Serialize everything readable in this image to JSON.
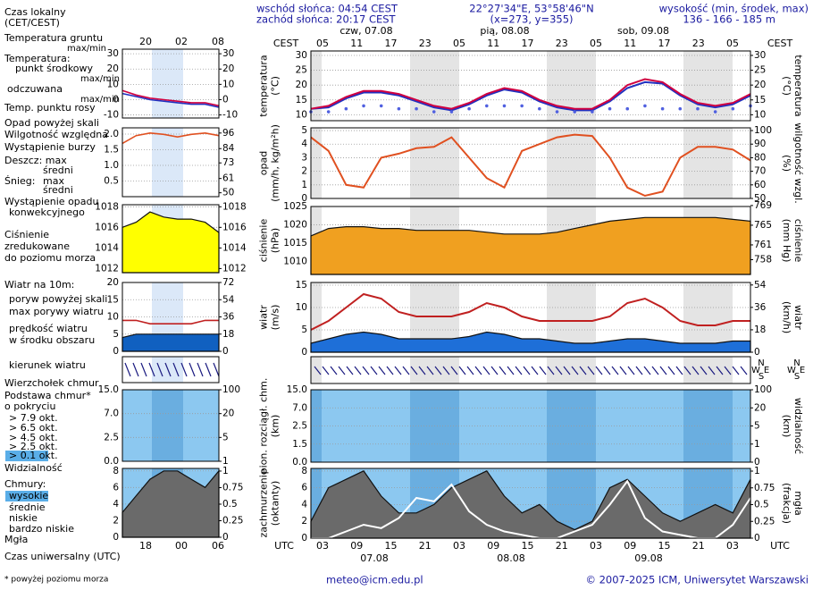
{
  "header": {
    "sunrise": "wschód słońca: 04:54 CEST",
    "sunset": "zachód słońca: 20:17 CEST",
    "coords": "22°27'34\"E, 53°58'46\"N",
    "grid": "(x=273, y=355)",
    "altitude_label": "wysokość (min, środek, max)",
    "altitude": "136 - 166 - 185 m"
  },
  "chart_data": {
    "type": "line",
    "cest_label": "CEST",
    "utc_label": "UTC",
    "cest_hours": [
      "05",
      "11",
      "17",
      "23",
      "05",
      "11",
      "17",
      "23",
      "05",
      "11",
      "17",
      "23",
      "05"
    ],
    "utc_hours": [
      "03",
      "09",
      "15",
      "21",
      "03",
      "09",
      "15",
      "21",
      "03",
      "09",
      "15",
      "21",
      "03"
    ],
    "days_top": [
      "czw, 07.08",
      "pią, 08.08",
      "sob, 09.08"
    ],
    "days_bottom": [
      "07.08",
      "08.08",
      "09.08"
    ],
    "left_hours_top": [
      "20",
      "02",
      "08"
    ],
    "left_hours_bottom": [
      "18",
      "00",
      "06"
    ],
    "compass": [
      "N",
      "W",
      "E",
      "S"
    ],
    "panels": [
      {
        "left_label": [
          "temperatura",
          "(°C)"
        ],
        "right_label": [
          "(°C)",
          "temperatura"
        ],
        "ylim": [
          8,
          31.5
        ],
        "yticks": [
          10,
          15,
          20,
          25,
          30
        ],
        "y2lim": [
          8,
          31.5
        ],
        "y2ticks": [
          10,
          15,
          20,
          25,
          30
        ],
        "series": [
          {
            "style": "line",
            "color": "#2030c0",
            "values": [
              12,
              12.5,
              15.5,
              17.5,
              17.5,
              16.5,
              14.5,
              12.5,
              11.5,
              13.5,
              16.5,
              18.5,
              17.5,
              14.5,
              12.5,
              11.5,
              11.5,
              14.5,
              19,
              21,
              20.5,
              16.5,
              13.5,
              12.5,
              13.5,
              16.5
            ]
          },
          {
            "style": "line",
            "color": "#d00040",
            "values": [
              12,
              13,
              16,
              18,
              18,
              17,
              15,
              13,
              12,
              14,
              17,
              19,
              18,
              15,
              13,
              12,
              12,
              15,
              20,
              22,
              21,
              17,
              14,
              13,
              14,
              17
            ]
          },
          {
            "style": "dots",
            "color": "#5060e0",
            "values": [
              11,
              11,
              12,
              13,
              13,
              12,
              12,
              11,
              11,
              12,
              13,
              13,
              13,
              12,
              11,
              11,
              11,
              12,
              12,
              13,
              12,
              12,
              12,
              11,
              12,
              13
            ]
          }
        ]
      },
      {
        "left_label": [
          "opad",
          "(mm/h, kg/m²h)"
        ],
        "right_label": [
          "(%)",
          "wilgotność wzgl."
        ],
        "ylim": [
          0,
          5.2
        ],
        "yticks": [
          0,
          1,
          2,
          3,
          4,
          5
        ],
        "y2lim": [
          50,
          102
        ],
        "y2ticks": [
          50,
          60,
          70,
          80,
          90,
          100
        ],
        "series": [
          {
            "style": "line",
            "axis": "y2",
            "color": "#e05020",
            "values": [
              95,
              85,
              60,
              58,
              80,
              83,
              87,
              88,
              95,
              80,
              65,
              58,
              85,
              90,
              95,
              97,
              96,
              80,
              58,
              52,
              55,
              80,
              88,
              88,
              86,
              78
            ]
          }
        ]
      },
      {
        "left_label": [
          "ciśnienie",
          "(hPa)"
        ],
        "right_label": [
          "(mm Hg)",
          "ciśnienie"
        ],
        "ylim": [
          1006.5,
          1025
        ],
        "yticks": [
          1010,
          1015,
          1020,
          1025
        ],
        "y2lim": [
          755,
          768.8
        ],
        "y2ticks": [
          758,
          761,
          765,
          769
        ],
        "series": [
          {
            "style": "area",
            "color": "#f0a020",
            "values": [
              1017,
              1019,
              1019.5,
              1019.5,
              1019,
              1019,
              1018.5,
              1018.5,
              1018.5,
              1018.5,
              1018,
              1017.5,
              1017.5,
              1017.5,
              1018,
              1019,
              1020,
              1021,
              1021.5,
              1022,
              1022,
              1022,
              1022,
              1022,
              1021.5,
              1021
            ]
          }
        ]
      },
      {
        "left_label": [
          "wiatr",
          "(m/s)"
        ],
        "right_label": [
          "(km/h)",
          "wiatr"
        ],
        "ylim": [
          0,
          15.6
        ],
        "yticks": [
          0,
          5,
          10,
          15
        ],
        "y2lim": [
          0,
          56
        ],
        "y2ticks": [
          0,
          18,
          36,
          54
        ],
        "series": [
          {
            "style": "area",
            "color": "#1e6fd8",
            "values": [
              2,
              3,
              4,
              4.5,
              4,
              3,
              3,
              3,
              3,
              3.5,
              4.5,
              4,
              3,
              3,
              2.5,
              2,
              2,
              2.5,
              3,
              3,
              2.5,
              2,
              2,
              2,
              2.5,
              2.5
            ]
          },
          {
            "style": "line",
            "color": "#c02020",
            "values": [
              5,
              7,
              10,
              13,
              12,
              9,
              8,
              8,
              8,
              9,
              11,
              10,
              8,
              7,
              7,
              7,
              7,
              8,
              11,
              12,
              10,
              7,
              6,
              6,
              7,
              7
            ]
          }
        ]
      },
      {
        "left_label": [],
        "right_label": []
      },
      {
        "left_label": [
          "pion. rozciągł. chm.",
          "(km)"
        ],
        "right_label": [
          "(km)",
          "widzialność"
        ],
        "yticks": [
          {
            "value": 0,
            "label": "0.0"
          },
          1.5,
          2.5,
          {
            "value": 7,
            "label": "7.0"
          },
          {
            "value": 15,
            "label": "15.0"
          }
        ],
        "y2ticks": [
          0,
          1,
          5,
          20,
          100
        ]
      },
      {
        "left_label": [
          "zachmurzenie",
          "(oktanty)"
        ],
        "right_label": [
          "(frakcja)",
          "mgła"
        ],
        "ylim": [
          0,
          8.3
        ],
        "yticks": [
          0,
          2,
          4,
          6,
          8
        ],
        "y2lim": [
          0,
          1.04
        ],
        "y2ticks": [
          0,
          0.25,
          0.5,
          0.75,
          1
        ],
        "series": [
          {
            "style": "area",
            "color": "#6a6a6a",
            "values": [
              2,
              6,
              7,
              8,
              5,
              3,
              3,
              4,
              6,
              7,
              8,
              5,
              3,
              4,
              2,
              1,
              2,
              6,
              7,
              5,
              3,
              2,
              3,
              4,
              3,
              7
            ]
          },
          {
            "style": "line",
            "axis": "y2",
            "color": "#ffffff",
            "values": [
              0,
              0,
              0.1,
              0.2,
              0.15,
              0.3,
              0.6,
              0.55,
              0.8,
              0.4,
              0.2,
              0.1,
              0.05,
              0,
              0,
              0.1,
              0.2,
              0.5,
              0.85,
              0.3,
              0.1,
              0.05,
              0,
              0,
              0.2,
              0.6
            ]
          }
        ]
      }
    ],
    "mini_panels": [
      {
        "ylim": [
          -12,
          33
        ],
        "yticks": [
          -10,
          0,
          10,
          20,
          30
        ],
        "y2lim": [
          -12,
          33
        ],
        "y2ticks": [
          -10,
          0,
          10,
          20,
          30
        ],
        "series": [
          {
            "style": "line",
            "color": "#2030c0",
            "values": [
              4,
              2,
              0,
              -1,
              -2,
              -3,
              -3,
              -5
            ]
          },
          {
            "style": "line",
            "color": "#d00040",
            "values": [
              6,
              3,
              1,
              0,
              -1,
              -2,
              -2,
              -4
            ]
          }
        ]
      },
      {
        "ylim": [
          0,
          2.2
        ],
        "yticks": [
          0.5,
          {
            "value": 1,
            "label": "1.0"
          },
          1.5,
          {
            "value": 2,
            "label": "2.0"
          }
        ],
        "y2lim": [
          47,
          100
        ],
        "y2ticks": [
          50,
          61,
          73,
          84,
          96
        ],
        "series": [
          {
            "style": "line",
            "axis": "y2",
            "color": "#e05020",
            "values": [
              88,
              94,
              96,
              95,
              93,
              95,
              96,
              94
            ]
          }
        ]
      },
      {
        "ylim": [
          1011.6,
          1018.2
        ],
        "yticks": [
          1012,
          1014,
          1016,
          1018
        ],
        "y2lim": [
          1011.6,
          1018.2
        ],
        "y2ticks": [
          1012,
          1014,
          1016,
          1018
        ],
        "series": [
          {
            "style": "area",
            "color": "#ffff00",
            "values": [
              1016,
              1016.5,
              1017.5,
              1017,
              1016.8,
              1016.8,
              1016.5,
              1015.5
            ]
          }
        ]
      },
      {
        "ylim": [
          0,
          20
        ],
        "yticks": [
          0,
          5,
          10,
          15,
          20
        ],
        "y2lim": [
          0,
          72
        ],
        "y2ticks": [
          0,
          18,
          36,
          54,
          72
        ],
        "series": [
          {
            "style": "area",
            "color": "#1060c0",
            "values": [
              4,
              5,
              5,
              5,
              5,
              5,
              5,
              5
            ]
          },
          {
            "style": "line",
            "color": "#c02020",
            "values": [
              9,
              9,
              8,
              8,
              8,
              8,
              9,
              9
            ]
          }
        ]
      },
      {},
      {
        "yticks": [
          {
            "value": 0,
            "label": "0.0"
          },
          2.5,
          {
            "value": 7,
            "label": "7.0"
          },
          {
            "value": 15,
            "label": "15.0"
          }
        ],
        "y2ticks": [
          1,
          5,
          20,
          100
        ]
      },
      {
        "ylim": [
          0,
          8.3
        ],
        "yticks": [
          0,
          2,
          4,
          6,
          8
        ],
        "y2lim": [
          0,
          1.04
        ],
        "y2ticks": [
          0,
          0.25,
          0.5,
          0.75,
          1
        ],
        "series": [
          {
            "style": "area",
            "color": "#6a6a6a",
            "values": [
              3,
              5,
              7,
              8,
              8,
              7,
              6,
              8
            ]
          }
        ]
      }
    ]
  },
  "legend": [
    "Czas lokalny",
    "(CET/CEST)",
    "Temperatura gruntu",
    "max/min",
    "Temperatura:",
    "punkt środkowy",
    "max/min",
    "odczuwana",
    "max/min",
    "Temp. punktu rosy",
    "Opad powyżej skali",
    "Wilgotność względna",
    "Wystąpienie burzy",
    "Deszcz: max",
    "średni",
    "Śnieg:",
    "max",
    "średni",
    "Wystąpienie opadu",
    "konwekcyjnego",
    "Ciśnienie",
    "zredukowane",
    "do poziomu morza",
    "Wiatr na 10m:",
    "poryw powyżej skali",
    "max porywy wiatru",
    "prędkość wiatru",
    "w środku obszaru",
    "kierunek wiatru",
    "Wierzchołek chmur",
    "Podstawa chmur*",
    "o pokryciu",
    "> 7.9 okt.",
    "> 6.5 okt.",
    "> 4.5 okt.",
    "> 2.5 okt.",
    "> 0.1 okt.",
    "Widzialność",
    "Chmury:",
    "wysokie",
    "średnie",
    "niskie",
    "bardzo niskie",
    "Mgła",
    "Czas uniwersalny (UTC)"
  ],
  "footer": {
    "note": "* powyżej poziomu morza",
    "email": "meteo@icm.edu.pl",
    "copyright": "© 2007-2025 ICM, Uniwersytet Warszawski"
  }
}
